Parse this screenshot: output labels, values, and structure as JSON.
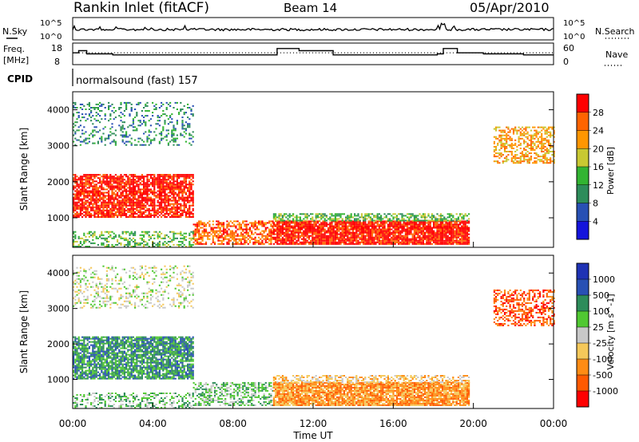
{
  "header": {
    "station": "Rankin Inlet (fitACF)",
    "beam": "Beam 14",
    "date": "05/Apr/2010"
  },
  "summary": {
    "nsky_label": "N.Sky",
    "nsearch_label": "N.Search",
    "noise_ticks": [
      "10^5",
      "10^0"
    ],
    "freq_label_1": "Freq.",
    "freq_label_2": "[MHz]",
    "freq_ticks": [
      "18",
      "8"
    ],
    "nave_label": "Nave",
    "nave_ticks": [
      "60",
      "0"
    ],
    "cpid_label": "CPID",
    "cpid_text": "normalsound (fast) 157"
  },
  "colors": {
    "power": [
      "#1414dc",
      "#2850b4",
      "#2d8c5a",
      "#32b432",
      "#c8c832",
      "#ff9600",
      "#ff6400",
      "#ff0000"
    ],
    "velocity": [
      "#ff0000",
      "#ff5a00",
      "#ff8c14",
      "#f5c85a",
      "#c8c8c8",
      "#50c832",
      "#2d8c5a",
      "#2850b4",
      "#1e32b4"
    ]
  },
  "chart_data": [
    {
      "type": "line",
      "title": "N.Sky / N.Search noise",
      "x_range_hours": [
        0,
        24
      ],
      "y_scale": "log",
      "ylim": [
        1,
        100000
      ]
    },
    {
      "type": "line",
      "title": "Freq. [MHz] / Nave",
      "x_range_hours": [
        0,
        24
      ],
      "ylim": [
        8,
        18
      ],
      "series": [
        {
          "name": "Freq. [MHz]",
          "x": [
            0,
            0.3,
            0.5,
            0.7,
            1.5,
            2.0,
            4.0,
            6.0,
            8.5,
            9.8,
            10.2,
            10.5,
            10.8,
            11.3,
            13.0,
            14.5,
            15.5,
            16.8,
            18.2,
            18.5,
            18.9,
            19.2,
            20.5,
            21.5,
            22.5,
            23.0,
            24.0
          ],
          "y": [
            13.5,
            14.5,
            14.5,
            13,
            13,
            12.5,
            12.5,
            12.5,
            12.5,
            12.5,
            15.5,
            15.5,
            15.5,
            14.5,
            12.5,
            12.5,
            12.5,
            12.5,
            13,
            15.5,
            15.5,
            13.5,
            13,
            13,
            12.5,
            12.5,
            12.5
          ]
        },
        {
          "name": "Nave",
          "y_const": 13.5
        }
      ]
    },
    {
      "type": "heatmap",
      "title": "Power [dB]",
      "xlabel": "",
      "ylabel": "Slant Range [km]",
      "x_range_hours": [
        0,
        24
      ],
      "ylim": [
        180,
        4500
      ],
      "y_ticks": [
        1000,
        2000,
        3000,
        4000
      ],
      "colorbar_label": "Power [dB]",
      "colorbar_ticks": [
        "4",
        "8",
        "12",
        "16",
        "20",
        "24",
        "28"
      ],
      "regions": [
        {
          "t0": 0.0,
          "t1": 6.0,
          "r0": 1000,
          "r1": 2200,
          "level": 7,
          "density": 0.8
        },
        {
          "t0": 6.0,
          "t1": 10.0,
          "r0": 250,
          "r1": 900,
          "level": 6,
          "density": 0.6
        },
        {
          "t0": 10.0,
          "t1": 19.8,
          "r0": 250,
          "r1": 900,
          "level": 7,
          "density": 0.9
        },
        {
          "t0": 10.0,
          "t1": 19.8,
          "r0": 900,
          "r1": 1100,
          "level": 3,
          "density": 0.6
        },
        {
          "t0": 21.0,
          "t1": 24.0,
          "r0": 2500,
          "r1": 3500,
          "level": 5,
          "density": 0.5
        },
        {
          "t0": 0.0,
          "t1": 6.0,
          "r0": 180,
          "r1": 600,
          "level": 3,
          "density": 0.4
        },
        {
          "t0": 0.0,
          "t1": 6.0,
          "r0": 3000,
          "r1": 4200,
          "level": 2,
          "density": 0.25
        }
      ]
    },
    {
      "type": "heatmap",
      "title": "Velocity [m s^-1]",
      "xlabel": "Time UT",
      "ylabel": "Slant Range [km]",
      "x_range_hours": [
        0,
        24
      ],
      "x_ticks": [
        "00:00",
        "04:00",
        "08:00",
        "12:00",
        "16:00",
        "20:00",
        "00:00"
      ],
      "ylim": [
        180,
        4500
      ],
      "y_ticks": [
        1000,
        2000,
        3000,
        4000
      ],
      "colorbar_label": "Velocity [m s^-1]",
      "colorbar_ticks": [
        "-1000",
        "-500",
        "-100",
        "-25",
        "25",
        "100",
        "500",
        "1000"
      ],
      "regions": [
        {
          "t0": 0.0,
          "t1": 6.0,
          "r0": 1000,
          "r1": 2200,
          "level": 6,
          "density": 0.8
        },
        {
          "t0": 6.0,
          "t1": 10.0,
          "r0": 250,
          "r1": 900,
          "level": 5,
          "density": 0.5
        },
        {
          "t0": 10.0,
          "t1": 19.8,
          "r0": 250,
          "r1": 900,
          "level": 2,
          "density": 0.9
        },
        {
          "t0": 10.0,
          "t1": 19.8,
          "r0": 900,
          "r1": 1100,
          "level": 3,
          "density": 0.5
        },
        {
          "t0": 21.0,
          "t1": 24.0,
          "r0": 2500,
          "r1": 3500,
          "level": 1,
          "density": 0.5
        },
        {
          "t0": 0.0,
          "t1": 6.0,
          "r0": 180,
          "r1": 600,
          "level": 5,
          "density": 0.4
        },
        {
          "t0": 0.0,
          "t1": 6.0,
          "r0": 3000,
          "r1": 4200,
          "level": 4,
          "density": 0.25
        }
      ]
    }
  ]
}
